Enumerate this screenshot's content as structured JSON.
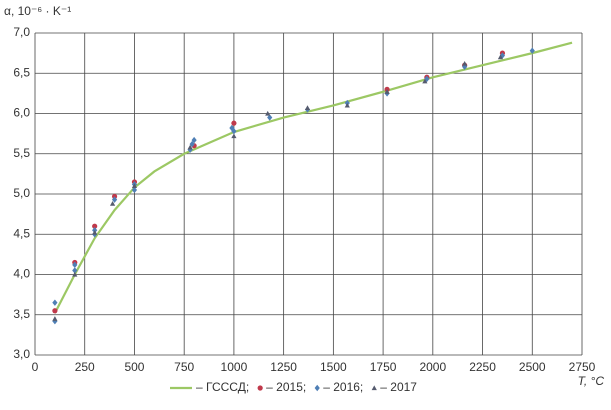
{
  "chart_data": {
    "type": "scatter",
    "y_label": "α, 10⁻⁶ · K⁻¹",
    "x_label": "T, °C",
    "xlim": [
      0,
      2750
    ],
    "xticks": [
      0,
      250,
      500,
      750,
      1000,
      1250,
      1500,
      1750,
      2000,
      2250,
      2500,
      2750
    ],
    "ylim": [
      3,
      7
    ],
    "yticks": [
      {
        "value": 3,
        "label": "3,0"
      },
      {
        "value": 3.5,
        "label": "3,5"
      },
      {
        "value": 4,
        "label": "4,0"
      },
      {
        "value": 4.5,
        "label": "4,5"
      },
      {
        "value": 5,
        "label": "5,0"
      },
      {
        "value": 5.5,
        "label": "5,5"
      },
      {
        "value": 6,
        "label": "6,0"
      },
      {
        "value": 6.5,
        "label": "6,5"
      },
      {
        "value": 7,
        "label": "7,0"
      }
    ],
    "grid": true,
    "legend": "bottom",
    "series": [
      {
        "name": "– ГСССД;",
        "marker": "line",
        "color": "#9cc864",
        "x": [
          100,
          200,
          300,
          400,
          500,
          600,
          750,
          1000,
          1250,
          1500,
          1750,
          2000,
          2250,
          2500,
          2700
        ],
        "values": [
          3.52,
          4.0,
          4.45,
          4.8,
          5.08,
          5.28,
          5.5,
          5.77,
          5.95,
          6.1,
          6.27,
          6.45,
          6.6,
          6.75,
          6.88
        ]
      },
      {
        "name": "– 2015;",
        "marker": "circle",
        "color": "#c0394b",
        "x": [
          100,
          200,
          300,
          400,
          500,
          800,
          1000,
          1770,
          1970,
          2160,
          2350
        ],
        "values": [
          3.55,
          4.15,
          4.6,
          4.97,
          5.15,
          5.6,
          5.88,
          6.3,
          6.45,
          6.6,
          6.75
        ]
      },
      {
        "name": "– 2016;",
        "marker": "diamond",
        "color": "#4f7fb5",
        "x": [
          100,
          100,
          200,
          200,
          300,
          300,
          400,
          500,
          500,
          780,
          790,
          800,
          1000,
          990,
          1180,
          1370,
          1570,
          1770,
          1970,
          2160,
          2350,
          2500
        ],
        "values": [
          3.42,
          3.65,
          4.05,
          4.12,
          4.5,
          4.55,
          4.93,
          5.05,
          5.12,
          5.55,
          5.62,
          5.67,
          5.78,
          5.82,
          5.95,
          6.05,
          6.13,
          6.25,
          6.43,
          6.58,
          6.72,
          6.78
        ]
      },
      {
        "name": "– 2017",
        "marker": "triangle",
        "color": "#555b6e",
        "x": [
          100,
          200,
          300,
          390,
          500,
          780,
          1000,
          1170,
          1370,
          1570,
          1770,
          1960,
          2160,
          2340
        ],
        "values": [
          3.45,
          4.0,
          4.52,
          4.88,
          5.1,
          5.58,
          5.72,
          6.0,
          6.07,
          6.1,
          6.27,
          6.4,
          6.62,
          6.7
        ]
      }
    ]
  }
}
